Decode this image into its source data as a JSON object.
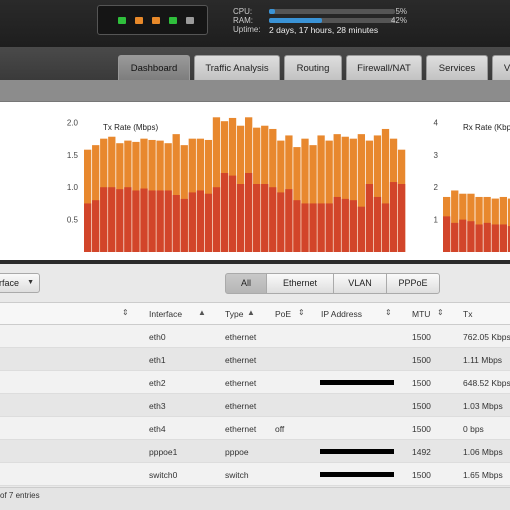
{
  "header": {
    "ports": [
      {
        "name": "port-eth0",
        "color": "#2fbf3c"
      },
      {
        "name": "port-eth1",
        "color": "#e8892a"
      },
      {
        "name": "port-eth2",
        "color": "#e8892a"
      },
      {
        "name": "port-eth3",
        "color": "#2fbf3c"
      },
      {
        "name": "port-eth4",
        "color": "#9a9a9a"
      }
    ],
    "cpu_label": "CPU:",
    "cpu_pct_text": "5%",
    "cpu_value": 5,
    "ram_label": "RAM:",
    "ram_pct_text": "42%",
    "ram_value": 42,
    "uptime_label": "Uptime:",
    "uptime_value": "2 days, 17 hours, 28 minutes"
  },
  "tabs": [
    {
      "label": "Dashboard",
      "active": true
    },
    {
      "label": "Traffic Analysis",
      "active": false
    },
    {
      "label": "Routing",
      "active": false
    },
    {
      "label": "Firewall/NAT",
      "active": false
    },
    {
      "label": "Services",
      "active": false
    },
    {
      "label": "V",
      "active": false
    }
  ],
  "chart_data": [
    {
      "type": "bar",
      "title": "Tx Rate (Mbps)",
      "ylim": [
        0,
        2.1
      ],
      "yticks": [
        "2.0",
        "1.5",
        "1.0",
        "0.5"
      ],
      "series": [
        {
          "values": [
            0.75,
            0.8,
            1.0,
            1.0,
            0.97,
            1.0,
            0.95,
            0.98,
            0.95,
            0.95,
            0.95,
            0.88,
            0.82,
            0.92,
            0.95,
            0.9,
            1.0,
            1.22,
            1.18,
            1.05,
            1.22,
            1.05,
            1.05,
            1.0,
            0.92,
            0.97,
            0.8,
            0.75,
            0.75,
            0.75,
            0.75,
            0.85,
            0.82,
            0.8,
            0.7,
            1.05,
            0.85,
            0.75,
            1.08,
            1.05
          ]
        },
        {
          "values": [
            1.58,
            1.65,
            1.75,
            1.78,
            1.68,
            1.72,
            1.7,
            1.75,
            1.73,
            1.72,
            1.68,
            1.82,
            1.65,
            1.75,
            1.75,
            1.73,
            2.08,
            2.02,
            2.07,
            1.95,
            2.08,
            1.92,
            1.95,
            1.9,
            1.72,
            1.8,
            1.62,
            1.75,
            1.65,
            1.8,
            1.72,
            1.82,
            1.78,
            1.75,
            1.82,
            1.72,
            1.8,
            1.9,
            1.75,
            1.58
          ]
        }
      ]
    },
    {
      "type": "bar",
      "title": "Rx Rate (Kbps)",
      "ylim": [
        0,
        4.2
      ],
      "yticks": [
        "4",
        "3",
        "2",
        "1"
      ],
      "series": [
        {
          "values": [
            1.1,
            0.9,
            1.0,
            0.95,
            0.85,
            0.9,
            0.85,
            0.85,
            0.8,
            0.75,
            0.8,
            0.75,
            0.8,
            0.7
          ]
        },
        {
          "values": [
            1.7,
            1.9,
            1.8,
            1.8,
            1.7,
            1.7,
            1.65,
            1.7,
            1.65,
            1.65,
            1.7,
            1.6,
            1.6,
            1.55
          ]
        }
      ]
    }
  ],
  "colors": {
    "series_low": "#d2452a",
    "series_high": "#e8882e"
  },
  "interface_select": "rface",
  "filters": [
    "All",
    "Ethernet",
    "VLAN",
    "PPPoE"
  ],
  "table": {
    "headers": {
      "interface": "Interface",
      "type": "Type",
      "poe": "PoE",
      "ip": "IP Address",
      "mtu": "MTU",
      "tx": "Tx"
    },
    "rows": [
      {
        "interface": "eth0",
        "type": "ethernet",
        "poe": "",
        "redacted": false,
        "mtu": "1500",
        "tx": "762.05 Kbps"
      },
      {
        "interface": "eth1",
        "type": "ethernet",
        "poe": "",
        "redacted": false,
        "mtu": "1500",
        "tx": "1.11 Mbps"
      },
      {
        "interface": "eth2",
        "type": "ethernet",
        "poe": "",
        "redacted": true,
        "mtu": "1500",
        "tx": "648.52 Kbps"
      },
      {
        "interface": "eth3",
        "type": "ethernet",
        "poe": "",
        "redacted": false,
        "mtu": "1500",
        "tx": "1.03 Mbps"
      },
      {
        "interface": "eth4",
        "type": "ethernet",
        "poe": "off",
        "redacted": false,
        "mtu": "1500",
        "tx": "0 bps"
      },
      {
        "interface": "pppoe1",
        "type": "pppoe",
        "poe": "",
        "redacted": true,
        "mtu": "1492",
        "tx": "1.06 Mbps"
      },
      {
        "interface": "switch0",
        "type": "switch",
        "poe": "",
        "redacted": true,
        "mtu": "1500",
        "tx": "1.65 Mbps"
      }
    ],
    "footer": "of 7 entries"
  }
}
